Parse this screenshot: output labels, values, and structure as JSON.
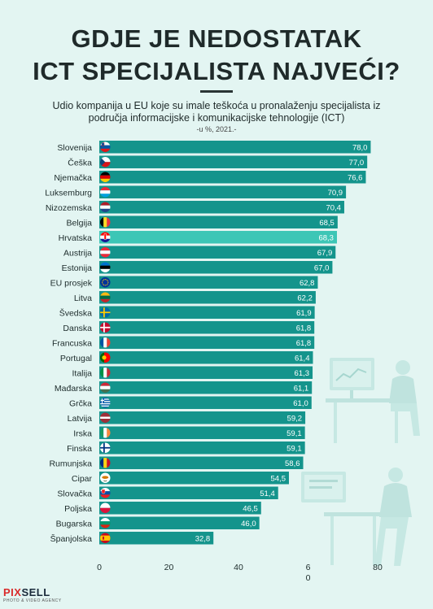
{
  "header": {
    "title_line1": "GDJE JE NEDOSTATAK",
    "title_line2": "ICT SPECIJALISTA NAJVEĆI?",
    "subtitle_line1": "Udio kompanija u EU koje su imale teškoća u pronalaženju specijalista iz",
    "subtitle_line2": "područja informacijske i komunikacijske tehnologije (ICT)",
    "unit": "-u %, 2021.-"
  },
  "colors": {
    "bar": "#14948c",
    "highlight": "#3dc6b6",
    "text_value": "#ffffff",
    "background": "#e3f5f2"
  },
  "chart_data": {
    "type": "bar",
    "orientation": "horizontal",
    "categories": [
      "Slovenija",
      "Češka",
      "Njemačka",
      "Luksemburg",
      "Nizozemska",
      "Belgija",
      "Hrvatska",
      "Austrija",
      "Estonija",
      "EU prosjek",
      "Litva",
      "Švedska",
      "Danska",
      "Francuska",
      "Portugal",
      "Italija",
      "Mađarska",
      "Grčka",
      "Latvija",
      "Irska",
      "Finska",
      "Rumunjska",
      "Cipar",
      "Slovačka",
      "Poljska",
      "Bugarska",
      "Španjolska"
    ],
    "values": [
      78.0,
      77.0,
      76.6,
      70.9,
      70.4,
      68.5,
      68.3,
      67.9,
      67.0,
      62.8,
      62.2,
      61.9,
      61.8,
      61.8,
      61.4,
      61.3,
      61.1,
      61.0,
      59.2,
      59.1,
      59.1,
      58.6,
      54.5,
      51.4,
      46.5,
      46.0,
      32.8
    ],
    "value_labels": [
      "78,0",
      "77,0",
      "76,6",
      "70,9",
      "70,4",
      "68,5",
      "68,3",
      "67,9",
      "67,0",
      "62,8",
      "62,2",
      "61,9",
      "61,8",
      "61,8",
      "61,4",
      "61,3",
      "61,1",
      "61,0",
      "59,2",
      "59,1",
      "59,1",
      "58,6",
      "54,5",
      "51,4",
      "46,5",
      "46,0",
      "32,8"
    ],
    "highlight": "Hrvatska",
    "xticks": [
      "0",
      "20",
      "40",
      "6\n0",
      "80"
    ],
    "xlim": [
      0,
      80
    ]
  },
  "flags": [
    "slovenia-flag",
    "czech-flag",
    "germany-flag",
    "luxembourg-flag",
    "netherlands-flag",
    "belgium-flag",
    "croatia-flag",
    "austria-flag",
    "estonia-flag",
    "eu-flag",
    "lithuania-flag",
    "sweden-flag",
    "denmark-flag",
    "france-flag",
    "portugal-flag",
    "italy-flag",
    "hungary-flag",
    "greece-flag",
    "latvia-flag",
    "ireland-flag",
    "finland-flag",
    "romania-flag",
    "cyprus-flag",
    "slovakia-flag",
    "poland-flag",
    "bulgaria-flag",
    "spain-flag"
  ],
  "footer": {
    "logo_a": "PIX",
    "logo_b": "SELL",
    "logo_sub": "PHOTO & VIDEO AGENCY"
  }
}
